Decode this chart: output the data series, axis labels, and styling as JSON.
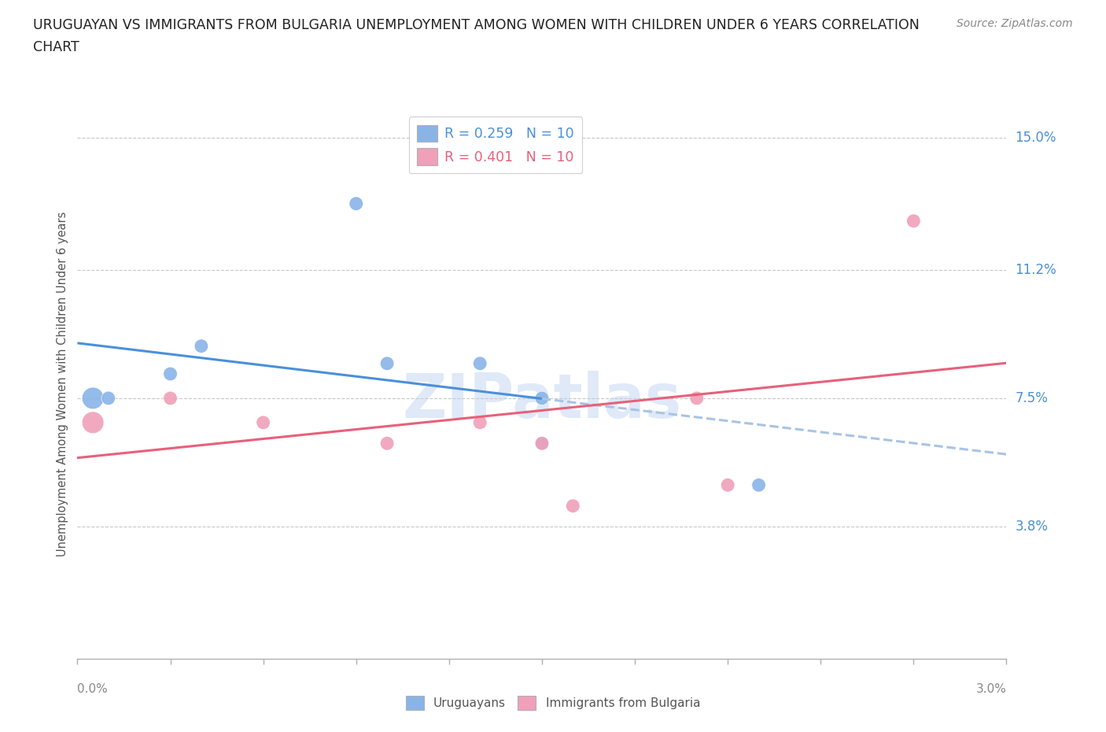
{
  "title_line1": "URUGUAYAN VS IMMIGRANTS FROM BULGARIA UNEMPLOYMENT AMONG WOMEN WITH CHILDREN UNDER 6 YEARS CORRELATION",
  "title_line2": "CHART",
  "source": "Source: ZipAtlas.com",
  "ylabel_label": "Unemployment Among Women with Children Under 6 years",
  "legend_entries": [
    {
      "label": "R = 0.259   N = 10",
      "color": "#a8c8f0"
    },
    {
      "label": "R = 0.401   N = 10",
      "color": "#f0a8c0"
    }
  ],
  "uruguayan_points": [
    [
      0.0005,
      0.075
    ],
    [
      0.001,
      0.075
    ],
    [
      0.003,
      0.082
    ],
    [
      0.004,
      0.09
    ],
    [
      0.009,
      0.131
    ],
    [
      0.01,
      0.085
    ],
    [
      0.013,
      0.085
    ],
    [
      0.015,
      0.075
    ],
    [
      0.015,
      0.062
    ],
    [
      0.022,
      0.05
    ]
  ],
  "bulgaria_points": [
    [
      0.0005,
      0.068
    ],
    [
      0.003,
      0.075
    ],
    [
      0.006,
      0.068
    ],
    [
      0.01,
      0.062
    ],
    [
      0.013,
      0.068
    ],
    [
      0.015,
      0.062
    ],
    [
      0.016,
      0.044
    ],
    [
      0.02,
      0.075
    ],
    [
      0.021,
      0.05
    ],
    [
      0.027,
      0.126
    ]
  ],
  "uruguayan_color": "#89b4e8",
  "bulgaria_color": "#f0a0b8",
  "uruguayan_line_color": "#4a90d9",
  "bulgaria_line_color": "#e8607a",
  "uruguayan_extend_color": "#a8c4e4",
  "background_color": "#ffffff",
  "grid_color": "#c8c8c8",
  "watermark": "ZIPatlas",
  "x_min": 0.0,
  "x_max": 0.03,
  "y_min": 0.0,
  "y_max": 0.158,
  "ytick_vals": [
    0.038,
    0.075,
    0.112,
    0.15
  ],
  "ytick_labels": [
    "3.8%",
    "7.5%",
    "11.2%",
    "15.0%"
  ]
}
